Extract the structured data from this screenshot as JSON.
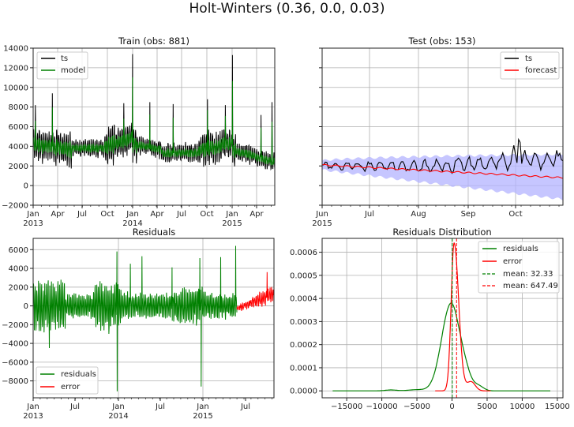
{
  "figure": {
    "title": "Holt-Winters (0.36, 0.0, 0.03)"
  },
  "colors": {
    "ts": "#000000",
    "model": "#008000",
    "forecast": "#ff0000",
    "band": "#b3b3ff",
    "residuals": "#008000",
    "error": "#ff0000",
    "grid": "#b0b0b0"
  },
  "chart_data": [
    {
      "id": "train",
      "type": "line",
      "title": "Train (obs: 881)",
      "xlabel": "",
      "ylabel": "",
      "ylim": [
        -2000,
        14000
      ],
      "yticks": [
        -2000,
        0,
        2000,
        4000,
        6000,
        8000,
        10000,
        12000,
        14000
      ],
      "ytick_labels": [
        "−2000",
        "0",
        "2000",
        "4000",
        "6000",
        "8000",
        "10000",
        "12000",
        "14000"
      ],
      "xticks": [
        "Jan\n2013",
        "Apr",
        "Jul",
        "Oct",
        "Jan\n2014",
        "Apr",
        "Jul",
        "Oct",
        "Jan\n2015",
        "Apr"
      ],
      "grid": true,
      "legend": {
        "position": "upper left",
        "entries": [
          "ts",
          "model"
        ]
      },
      "series": [
        {
          "name": "ts",
          "color": "#000000",
          "n_points": 881,
          "range": [
            1600,
            13400
          ],
          "notable_peaks": [
            {
              "date": "2013-03",
              "value": 9400
            },
            {
              "date": "2014-01",
              "value": 13400
            },
            {
              "date": "2014-03",
              "value": 8500
            },
            {
              "date": "2014-06",
              "value": 8300
            },
            {
              "date": "2014-10",
              "value": 8800
            },
            {
              "date": "2015-01",
              "value": 13300
            },
            {
              "date": "2015-04",
              "value": 7200
            },
            {
              "date": "2015-05",
              "value": 8500
            }
          ]
        },
        {
          "name": "model",
          "color": "#008000",
          "n_points": 881,
          "range": [
            1300,
            11500
          ]
        }
      ]
    },
    {
      "id": "test",
      "type": "line",
      "title": "Test (obs: 153)",
      "ylim": [
        -2000,
        14000
      ],
      "sharey": true,
      "xticks": [
        "Jun\n2015",
        "Jul",
        "Aug",
        "Sep",
        "Oct"
      ],
      "grid": true,
      "legend": {
        "position": "upper right",
        "entries": [
          "ts",
          "forecast"
        ]
      },
      "series": [
        {
          "name": "ts",
          "color": "#000000",
          "n_points": 153,
          "start": 2000,
          "end": 3500,
          "max": 4700
        },
        {
          "name": "forecast",
          "color": "#ff0000",
          "start": 2100,
          "end": 800
        },
        {
          "name": "confidence_band",
          "color": "#b3b3ff",
          "upper_start": 2500,
          "upper_end": 3200,
          "lower_start": 1600,
          "lower_end": -1400
        }
      ]
    },
    {
      "id": "residuals",
      "type": "line",
      "title": "Residuals",
      "ylim": [
        -9800,
        7200
      ],
      "yticks": [
        -8000,
        -6000,
        -4000,
        -2000,
        0,
        2000,
        4000,
        6000
      ],
      "ytick_labels": [
        "−8000",
        "−6000",
        "−4000",
        "−2000",
        "0",
        "2000",
        "4000",
        "6000"
      ],
      "xticks": [
        "Jan\n2013",
        "Jul",
        "Jan\n2014",
        "Jul",
        "Jan\n2015",
        "Jul"
      ],
      "grid": true,
      "legend": {
        "position": "lower left",
        "entries": [
          "residuals",
          "error"
        ]
      },
      "series": [
        {
          "name": "residuals",
          "color": "#008000",
          "range": [
            -9100,
            6400
          ]
        },
        {
          "name": "error",
          "color": "#ff0000",
          "range": [
            -500,
            3600
          ]
        }
      ]
    },
    {
      "id": "distribution",
      "type": "line",
      "title": "Residuals Distribution",
      "xlim": [
        -18500,
        15800
      ],
      "ylim": [
        -3e-05,
        0.00066
      ],
      "xticks": [
        -15000,
        -10000,
        -5000,
        0,
        5000,
        10000,
        15000
      ],
      "xtick_labels": [
        "−15000",
        "−10000",
        "−5000",
        "0",
        "5000",
        "10000",
        "15000"
      ],
      "yticks": [
        0.0,
        0.0001,
        0.0002,
        0.0003,
        0.0004,
        0.0005,
        0.0006
      ],
      "ytick_labels": [
        "0.0000",
        "0.0001",
        "0.0002",
        "0.0003",
        "0.0004",
        "0.0005",
        "0.0006"
      ],
      "grid": true,
      "legend": {
        "position": "upper right",
        "entries": [
          "residuals",
          "error",
          "mean: 32.33",
          "mean: 647.49"
        ]
      },
      "series": [
        {
          "name": "residuals",
          "color": "#008000",
          "kind": "kde",
          "peak_x": -200,
          "peak_y": 0.00037,
          "support": [
            -17000,
            14000
          ]
        },
        {
          "name": "error",
          "color": "#ff0000",
          "kind": "kde",
          "peak_x": 300,
          "peak_y": 0.00064,
          "support": [
            -2400,
            5500
          ]
        },
        {
          "name": "mean: 32.33",
          "color": "#008000",
          "kind": "vline",
          "x": 32.33,
          "style": "dashed"
        },
        {
          "name": "mean: 647.49",
          "color": "#ff0000",
          "kind": "vline",
          "x": 647.49,
          "style": "dashed"
        }
      ]
    }
  ]
}
